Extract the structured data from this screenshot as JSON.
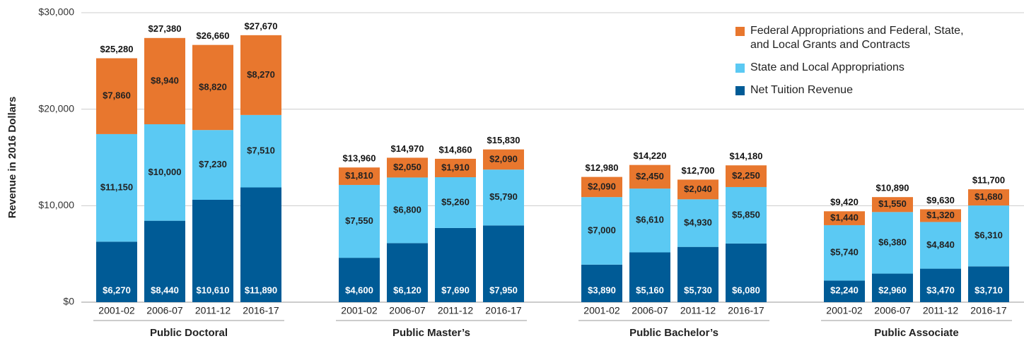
{
  "chart_data": {
    "type": "grouped-stacked-bar",
    "y_label": "Revenue in 2016 Dollars",
    "groups": [
      "Public Doctoral",
      "Public Master’s",
      "Public Bachelor’s",
      "Public Associate"
    ],
    "categories": [
      "2001-02",
      "2006-07",
      "2011-12",
      "2016-17"
    ],
    "ylim": [
      0,
      30000
    ],
    "yticks": [
      {
        "value": 0,
        "label": "$0"
      },
      {
        "value": 10000,
        "label": "$10,000"
      },
      {
        "value": 20000,
        "label": "$20,000"
      },
      {
        "value": 30000,
        "label": "$30,000"
      }
    ],
    "grid": true,
    "series": [
      {
        "name": "Net Tuition Revenue",
        "color": "#005b96",
        "values": [
          [
            6270,
            8440,
            10610,
            11890
          ],
          [
            4600,
            6120,
            7690,
            7950
          ],
          [
            3890,
            5160,
            5730,
            6080
          ],
          [
            2240,
            2960,
            3470,
            3710
          ]
        ],
        "value_labels": [
          [
            "$6,270",
            "$8,440",
            "$10,610",
            "$11,890"
          ],
          [
            "$4,600",
            "$6,120",
            "$7,690",
            "$7,950"
          ],
          [
            "$3,890",
            "$5,160",
            "$5,730",
            "$6,080"
          ],
          [
            "$2,240",
            "$2,960",
            "$3,470",
            "$3,710"
          ]
        ]
      },
      {
        "name": "State and Local Appropriations",
        "color": "#5bc9f3",
        "values": [
          [
            11150,
            10000,
            7230,
            7510
          ],
          [
            7550,
            6800,
            5260,
            5790
          ],
          [
            7000,
            6610,
            4930,
            5850
          ],
          [
            5740,
            6380,
            4840,
            6310
          ]
        ],
        "value_labels": [
          [
            "$11,150",
            "$10,000",
            "$7,230",
            "$7,510"
          ],
          [
            "$7,550",
            "$6,800",
            "$5,260",
            "$5,790"
          ],
          [
            "$7,000",
            "$6,610",
            "$4,930",
            "$5,850"
          ],
          [
            "$5,740",
            "$6,380",
            "$4,840",
            "$6,310"
          ]
        ]
      },
      {
        "name": "Federal Appropriations and Federal, State, and Local Grants and Contracts",
        "color": "#e8772e",
        "values": [
          [
            7860,
            8940,
            8820,
            8270
          ],
          [
            1810,
            2050,
            1910,
            2090
          ],
          [
            2090,
            2450,
            2040,
            2250
          ],
          [
            1440,
            1550,
            1320,
            1680
          ]
        ],
        "value_labels": [
          [
            "$7,860",
            "$8,940",
            "$8,820",
            "$8,270"
          ],
          [
            "$1,810",
            "$2,050",
            "$1,910",
            "$2,090"
          ],
          [
            "$2,090",
            "$2,450",
            "$2,040",
            "$2,250"
          ],
          [
            "$1,440",
            "$1,550",
            "$1,320",
            "$1,680"
          ]
        ]
      }
    ],
    "totals": {
      "values": [
        [
          25280,
          27380,
          26660,
          27670
        ],
        [
          13960,
          14970,
          14860,
          15830
        ],
        [
          12980,
          14220,
          12700,
          14180
        ],
        [
          9420,
          10890,
          9630,
          11700
        ]
      ],
      "value_labels": [
        [
          "$25,280",
          "$27,380",
          "$26,660",
          "$27,670"
        ],
        [
          "$13,960",
          "$14,970",
          "$14,860",
          "$15,830"
        ],
        [
          "$12,980",
          "$14,220",
          "$12,700",
          "$14,180"
        ],
        [
          "$9,420",
          "$10,890",
          "$9,630",
          "$11,700"
        ]
      ]
    }
  }
}
